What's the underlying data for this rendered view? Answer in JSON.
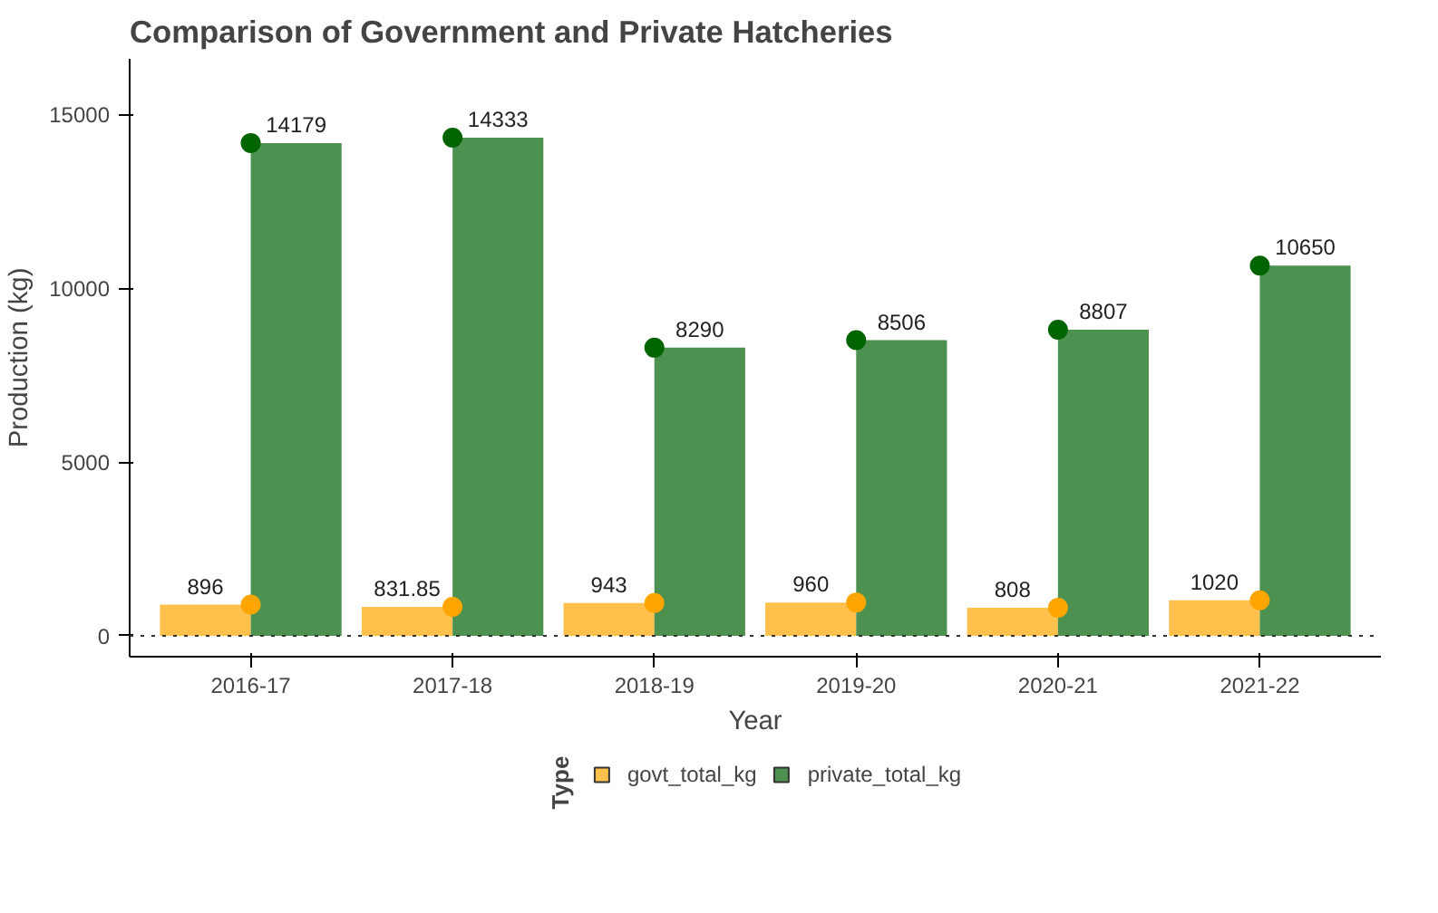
{
  "chart_data": {
    "type": "bar",
    "title": "Comparison of Government and Private Hatcheries",
    "xlabel": "Year",
    "ylabel": "Production (kg)",
    "legend_title": "Type",
    "categories": [
      "2016-17",
      "2017-18",
      "2018-19",
      "2019-20",
      "2020-21",
      "2021-22"
    ],
    "series": [
      {
        "name": "govt_total_kg",
        "color": "#ffc04c",
        "values": [
          896,
          831.85,
          943,
          960,
          808,
          1020
        ],
        "value_labels": [
          "896",
          "831.85",
          "943",
          "960",
          "808",
          "1020"
        ]
      },
      {
        "name": "private_total_kg",
        "color": "#4c9150",
        "values": [
          14179,
          14333,
          8290,
          8506,
          8807,
          10650
        ],
        "value_labels": [
          "14179",
          "14333",
          "8290",
          "8506",
          "8807",
          "10650"
        ]
      },
      {
        "type": "scatter",
        "color": "#ffa500",
        "x": [
          "2016-17",
          "2017-18",
          "2018-19",
          "2019-20",
          "2020-21",
          "2021-22"
        ],
        "values": [
          896,
          831.85,
          943,
          960,
          808,
          1020
        ]
      },
      {
        "type": "scatter",
        "color": "#006400",
        "x": [
          "2016-17",
          "2017-18",
          "2018-19",
          "2019-20",
          "2020-21",
          "2021-22"
        ],
        "values": [
          14179,
          14333,
          8290,
          8506,
          8807,
          10650
        ]
      }
    ],
    "ylim": [
      -600,
      16600
    ],
    "yticks": [
      0,
      5000,
      10000,
      15000
    ],
    "grid": false,
    "legend": "bottom",
    "marker": "circle",
    "ref_lines": [
      {
        "axis": "y",
        "value": 0,
        "color": "#333333",
        "line_style": "dotted"
      }
    ]
  }
}
